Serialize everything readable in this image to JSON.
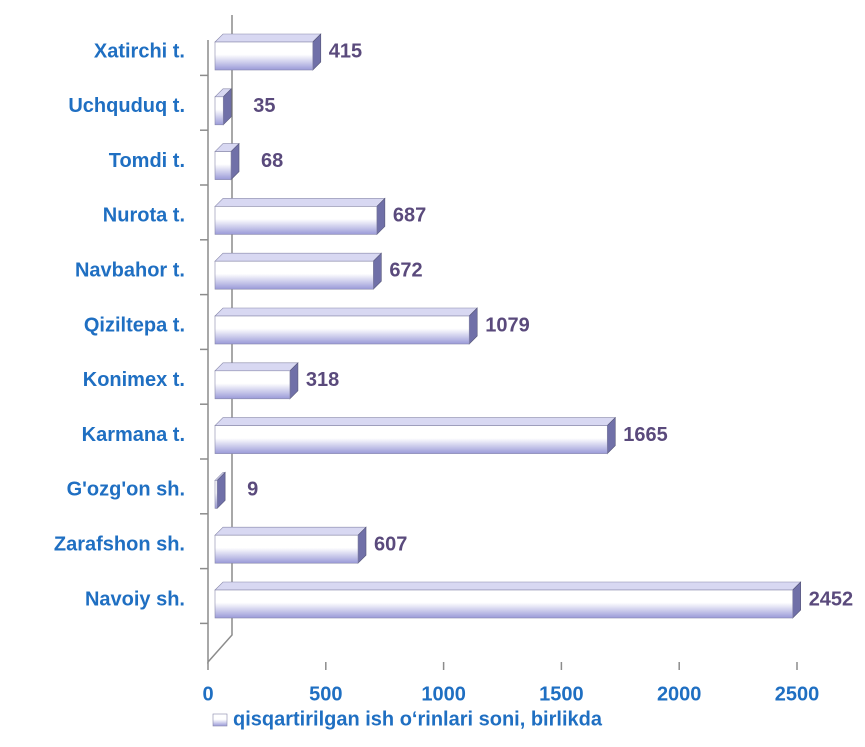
{
  "chart_data": {
    "type": "bar",
    "orientation": "horizontal",
    "categories": [
      "Xatirchi t.",
      "Uchquduq t.",
      "Tomdi t.",
      "Nurota t.",
      "Navbahor t.",
      "Qiziltepa t.",
      "Konimex t.",
      "Karmana t.",
      "G'ozg'on sh.",
      "Zarafshon sh.",
      "Navoiy sh."
    ],
    "series": [
      {
        "name": "qisqartirilgan ish o‘rinlari soni, birlikda",
        "color": "#9a9ad8",
        "values": [
          415,
          35,
          68,
          687,
          672,
          1079,
          318,
          1665,
          9,
          607,
          2452
        ]
      }
    ],
    "xlim": [
      0,
      2500
    ],
    "xticks": [
      0,
      500,
      1000,
      1500,
      2000,
      2500
    ],
    "legend": "bottom"
  }
}
